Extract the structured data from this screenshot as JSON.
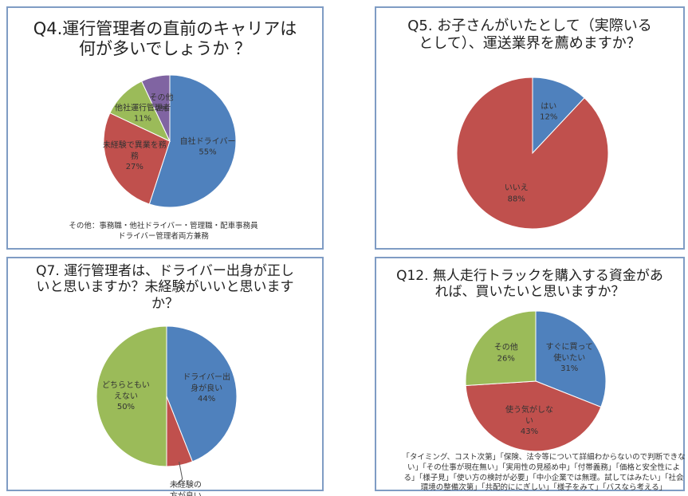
{
  "chart_data": [
    {
      "type": "pie",
      "title": "Q4.運行管理者の直前のキャリアは\n何が多いでしょうか ？",
      "categories": [
        "自社ドライバー",
        "未経験で異業を務\n務",
        "他社運行管理者",
        "その他"
      ],
      "values": [
        55,
        27,
        11,
        7
      ],
      "value_labels": [
        "55%",
        "27%",
        "11%",
        "7%"
      ],
      "colors": [
        "#4f81bd",
        "#c0504d",
        "#9bbb59",
        "#8064a2"
      ],
      "note": "その他：事務職・他社ドライバー・管理職・配車事務員\nドライバー管理者両方兼務"
    },
    {
      "type": "pie",
      "title": "Q5. お子さんがいたとして（実際いる\nとして）、運送業界を薦めますか？",
      "categories": [
        "はい",
        "いいえ"
      ],
      "values": [
        12,
        88
      ],
      "value_labels": [
        "12%",
        "88%"
      ],
      "colors": [
        "#4f81bd",
        "#c0504d"
      ]
    },
    {
      "type": "pie",
      "title": "Q7. 運行管理者は、ドライバー出身が正し\nいと思いますか？未経験がいいと思います\nか？",
      "categories": [
        "ドライバー出\n身が良い",
        "未経験の\n方が良い",
        "どちらともい\nえない"
      ],
      "values": [
        44,
        6,
        50
      ],
      "value_labels": [
        "44%",
        "6%",
        "50%"
      ],
      "colors": [
        "#4f81bd",
        "#c0504d",
        "#9bbb59"
      ]
    },
    {
      "type": "pie",
      "title": "Q12. 無人走行トラックを購入する資金があ\nれば、買いたいと思いますか？",
      "categories": [
        "すぐに買って\n使いたい",
        "使う気がしな\nい",
        "その他"
      ],
      "values": [
        31,
        43,
        26
      ],
      "value_labels": [
        "31%",
        "43%",
        "26%"
      ],
      "colors": [
        "#4f81bd",
        "#c0504d",
        "#9bbb59"
      ],
      "note": "「タイミング、コスト次第」「保険、法令等について詳細わからないので判断できな\nい」「その仕事が現在無い」「実用性の見極め中」「付帯義務」「価格と安全性によ\nる」「様子見」「使い方の検討が必要」「中小企業では無理。試してはみたい」「社会\n環境の整備次第」「共配的ににぎしい」「様子をみて」「バスなら考える」"
    }
  ]
}
